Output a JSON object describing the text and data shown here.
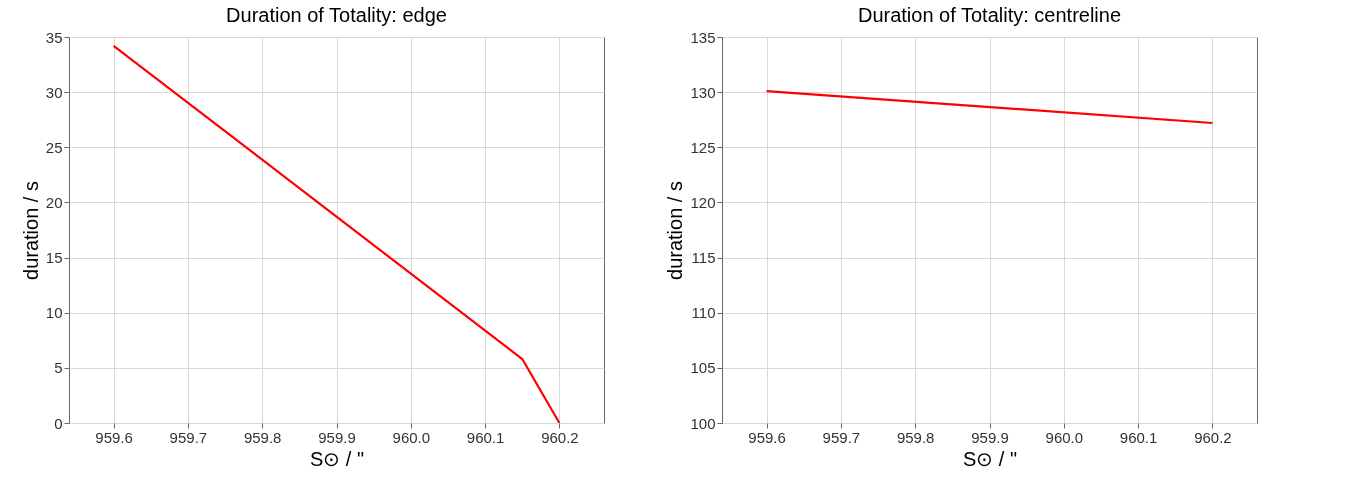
{
  "chart_data": [
    {
      "type": "line",
      "title": "Duration of Totality: edge",
      "xlabel": "S⊙ / \"",
      "ylabel": "duration / s",
      "x": [
        959.6,
        960.15,
        960.2
      ],
      "series": [
        {
          "color": "#ff0000",
          "values": [
            34.2,
            5.8,
            0
          ]
        }
      ],
      "xlim": [
        959.54,
        960.26
      ],
      "xticks": [
        {
          "value": 959.6,
          "label": "959.6"
        },
        {
          "value": 959.7,
          "label": "959.7"
        },
        {
          "value": 959.8,
          "label": "959.8"
        },
        {
          "value": 959.9,
          "label": "959.9"
        },
        {
          "value": 960.0,
          "label": "960.0"
        },
        {
          "value": 960.1,
          "label": "960.1"
        },
        {
          "value": 960.2,
          "label": "960.2"
        }
      ],
      "ylim": [
        0,
        35
      ],
      "yticks": [
        0,
        5,
        10,
        15,
        20,
        25,
        30,
        35
      ],
      "grid": true
    },
    {
      "type": "line",
      "title": "Duration of Totality: centreline",
      "xlabel": "S⊙ / \"",
      "ylabel": "duration / s",
      "x": [
        959.6,
        960.2
      ],
      "series": [
        {
          "color": "#ff0000",
          "values": [
            130.1,
            127.2
          ]
        }
      ],
      "xlim": [
        959.54,
        960.26
      ],
      "xticks": [
        {
          "value": 959.6,
          "label": "959.6"
        },
        {
          "value": 959.7,
          "label": "959.7"
        },
        {
          "value": 959.8,
          "label": "959.8"
        },
        {
          "value": 959.9,
          "label": "959.9"
        },
        {
          "value": 960.0,
          "label": "960.0"
        },
        {
          "value": 960.1,
          "label": "960.1"
        },
        {
          "value": 960.2,
          "label": "960.2"
        }
      ],
      "ylim": [
        100,
        135
      ],
      "yticks": [
        100,
        105,
        110,
        115,
        120,
        125,
        130,
        135
      ],
      "grid": true
    }
  ]
}
